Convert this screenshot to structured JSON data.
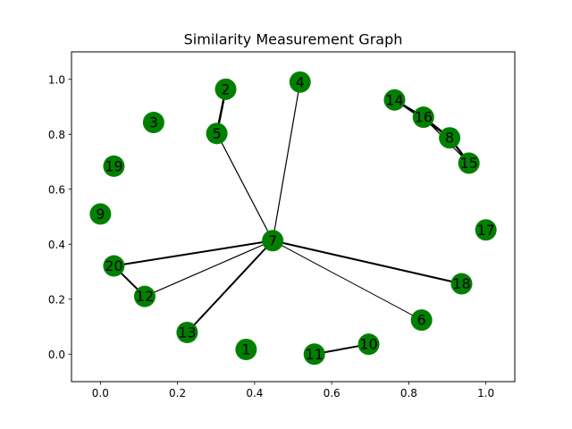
{
  "chart_data": {
    "type": "scatter",
    "title": "Similarity Measurement Graph",
    "xlabel": "",
    "ylabel": "",
    "xlim": [
      -0.075,
      1.075
    ],
    "ylim": [
      -0.1,
      1.1
    ],
    "grid": false,
    "x_ticks": [
      0.0,
      0.2,
      0.4,
      0.6,
      0.8,
      1.0
    ],
    "y_ticks": [
      0.0,
      0.2,
      0.4,
      0.6,
      0.8,
      1.0
    ],
    "x_tick_labels": [
      "0.0",
      "0.2",
      "0.4",
      "0.6",
      "0.8",
      "1.0"
    ],
    "y_tick_labels": [
      "0.0",
      "0.2",
      "0.4",
      "0.6",
      "0.8",
      "1.0"
    ],
    "node_color": "#008000",
    "edge_color": "#000000",
    "nodes": [
      {
        "id": "1",
        "x": 0.378,
        "y": 0.017
      },
      {
        "id": "2",
        "x": 0.325,
        "y": 0.964
      },
      {
        "id": "3",
        "x": 0.138,
        "y": 0.843
      },
      {
        "id": "4",
        "x": 0.518,
        "y": 0.99
      },
      {
        "id": "5",
        "x": 0.302,
        "y": 0.803
      },
      {
        "id": "6",
        "x": 0.833,
        "y": 0.124
      },
      {
        "id": "7",
        "x": 0.447,
        "y": 0.413
      },
      {
        "id": "8",
        "x": 0.906,
        "y": 0.787
      },
      {
        "id": "9",
        "x": 0.0,
        "y": 0.51
      },
      {
        "id": "10",
        "x": 0.696,
        "y": 0.036
      },
      {
        "id": "11",
        "x": 0.555,
        "y": 0.0
      },
      {
        "id": "12",
        "x": 0.115,
        "y": 0.21
      },
      {
        "id": "13",
        "x": 0.225,
        "y": 0.079
      },
      {
        "id": "14",
        "x": 0.763,
        "y": 0.925
      },
      {
        "id": "15",
        "x": 0.956,
        "y": 0.695
      },
      {
        "id": "16",
        "x": 0.838,
        "y": 0.862
      },
      {
        "id": "17",
        "x": 1.0,
        "y": 0.452
      },
      {
        "id": "18",
        "x": 0.937,
        "y": 0.256
      },
      {
        "id": "19",
        "x": 0.035,
        "y": 0.684
      },
      {
        "id": "20",
        "x": 0.035,
        "y": 0.321
      }
    ],
    "edges": [
      {
        "source": "2",
        "target": "5",
        "weight": 2.5
      },
      {
        "source": "5",
        "target": "7",
        "weight": 1.2
      },
      {
        "source": "4",
        "target": "7",
        "weight": 1.2
      },
      {
        "source": "7",
        "target": "20",
        "weight": 2.0
      },
      {
        "source": "7",
        "target": "12",
        "weight": 1.2
      },
      {
        "source": "7",
        "target": "13",
        "weight": 2.0
      },
      {
        "source": "7",
        "target": "18",
        "weight": 2.0
      },
      {
        "source": "7",
        "target": "6",
        "weight": 1.0
      },
      {
        "source": "20",
        "target": "12",
        "weight": 2.0
      },
      {
        "source": "11",
        "target": "10",
        "weight": 2.0
      },
      {
        "source": "14",
        "target": "16",
        "weight": 2.5
      },
      {
        "source": "16",
        "target": "8",
        "weight": 2.5
      },
      {
        "source": "8",
        "target": "15",
        "weight": 2.5
      },
      {
        "source": "16",
        "target": "15",
        "weight": 1.2
      },
      {
        "source": "14",
        "target": "8",
        "weight": 1.2
      }
    ]
  }
}
